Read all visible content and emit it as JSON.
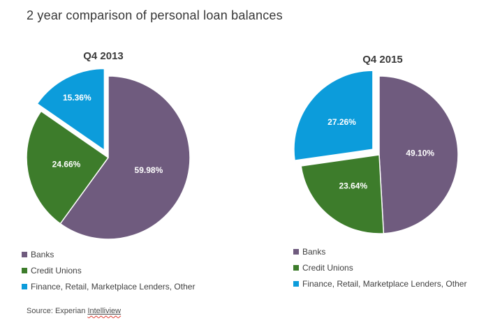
{
  "page": {
    "title": "2 year comparison of personal loan balances",
    "source_prefix": "Source: Experian ",
    "source_link_text": "Intelliview"
  },
  "colors": {
    "banks": "#6F5B7E",
    "credit_unions": "#3D7C2B",
    "finance_other": "#0C9CDB",
    "slice_stroke": "#FFFFFF",
    "pct_label_text": "#FFFFFF",
    "title_text": "#363636",
    "squiggle_red": "#E03C31"
  },
  "chart_data": [
    {
      "type": "pie",
      "title": "Q4 2013",
      "categories": [
        "Banks",
        "Credit Unions",
        "Finance, Retail, Marketplace Lenders, Other"
      ],
      "values": [
        59.98,
        24.66,
        15.36
      ],
      "labels": [
        "59.98%",
        "24.66%",
        "15.36%"
      ],
      "colors": [
        "#6F5B7E",
        "#3D7C2B",
        "#0C9CDB"
      ],
      "exploded": [
        false,
        false,
        true
      ],
      "start_angle_deg": 0,
      "direction": "clockwise",
      "legend_position": "bottom-left"
    },
    {
      "type": "pie",
      "title": "Q4 2015",
      "categories": [
        "Banks",
        "Credit Unions",
        "Finance, Retail, Marketplace Lenders, Other"
      ],
      "values": [
        49.1,
        23.64,
        27.26
      ],
      "labels": [
        "49.10%",
        "23.64%",
        "27.26%"
      ],
      "colors": [
        "#6F5B7E",
        "#3D7C2B",
        "#0C9CDB"
      ],
      "exploded": [
        false,
        false,
        true
      ],
      "start_angle_deg": 0,
      "direction": "clockwise",
      "legend_position": "bottom-left"
    }
  ],
  "legend": {
    "items": [
      {
        "label": "Banks",
        "color": "#6F5B7E"
      },
      {
        "label": "Credit Unions",
        "color": "#3D7C2B"
      },
      {
        "label": "Finance, Retail, Marketplace Lenders, Other",
        "color": "#0C9CDB"
      }
    ]
  }
}
